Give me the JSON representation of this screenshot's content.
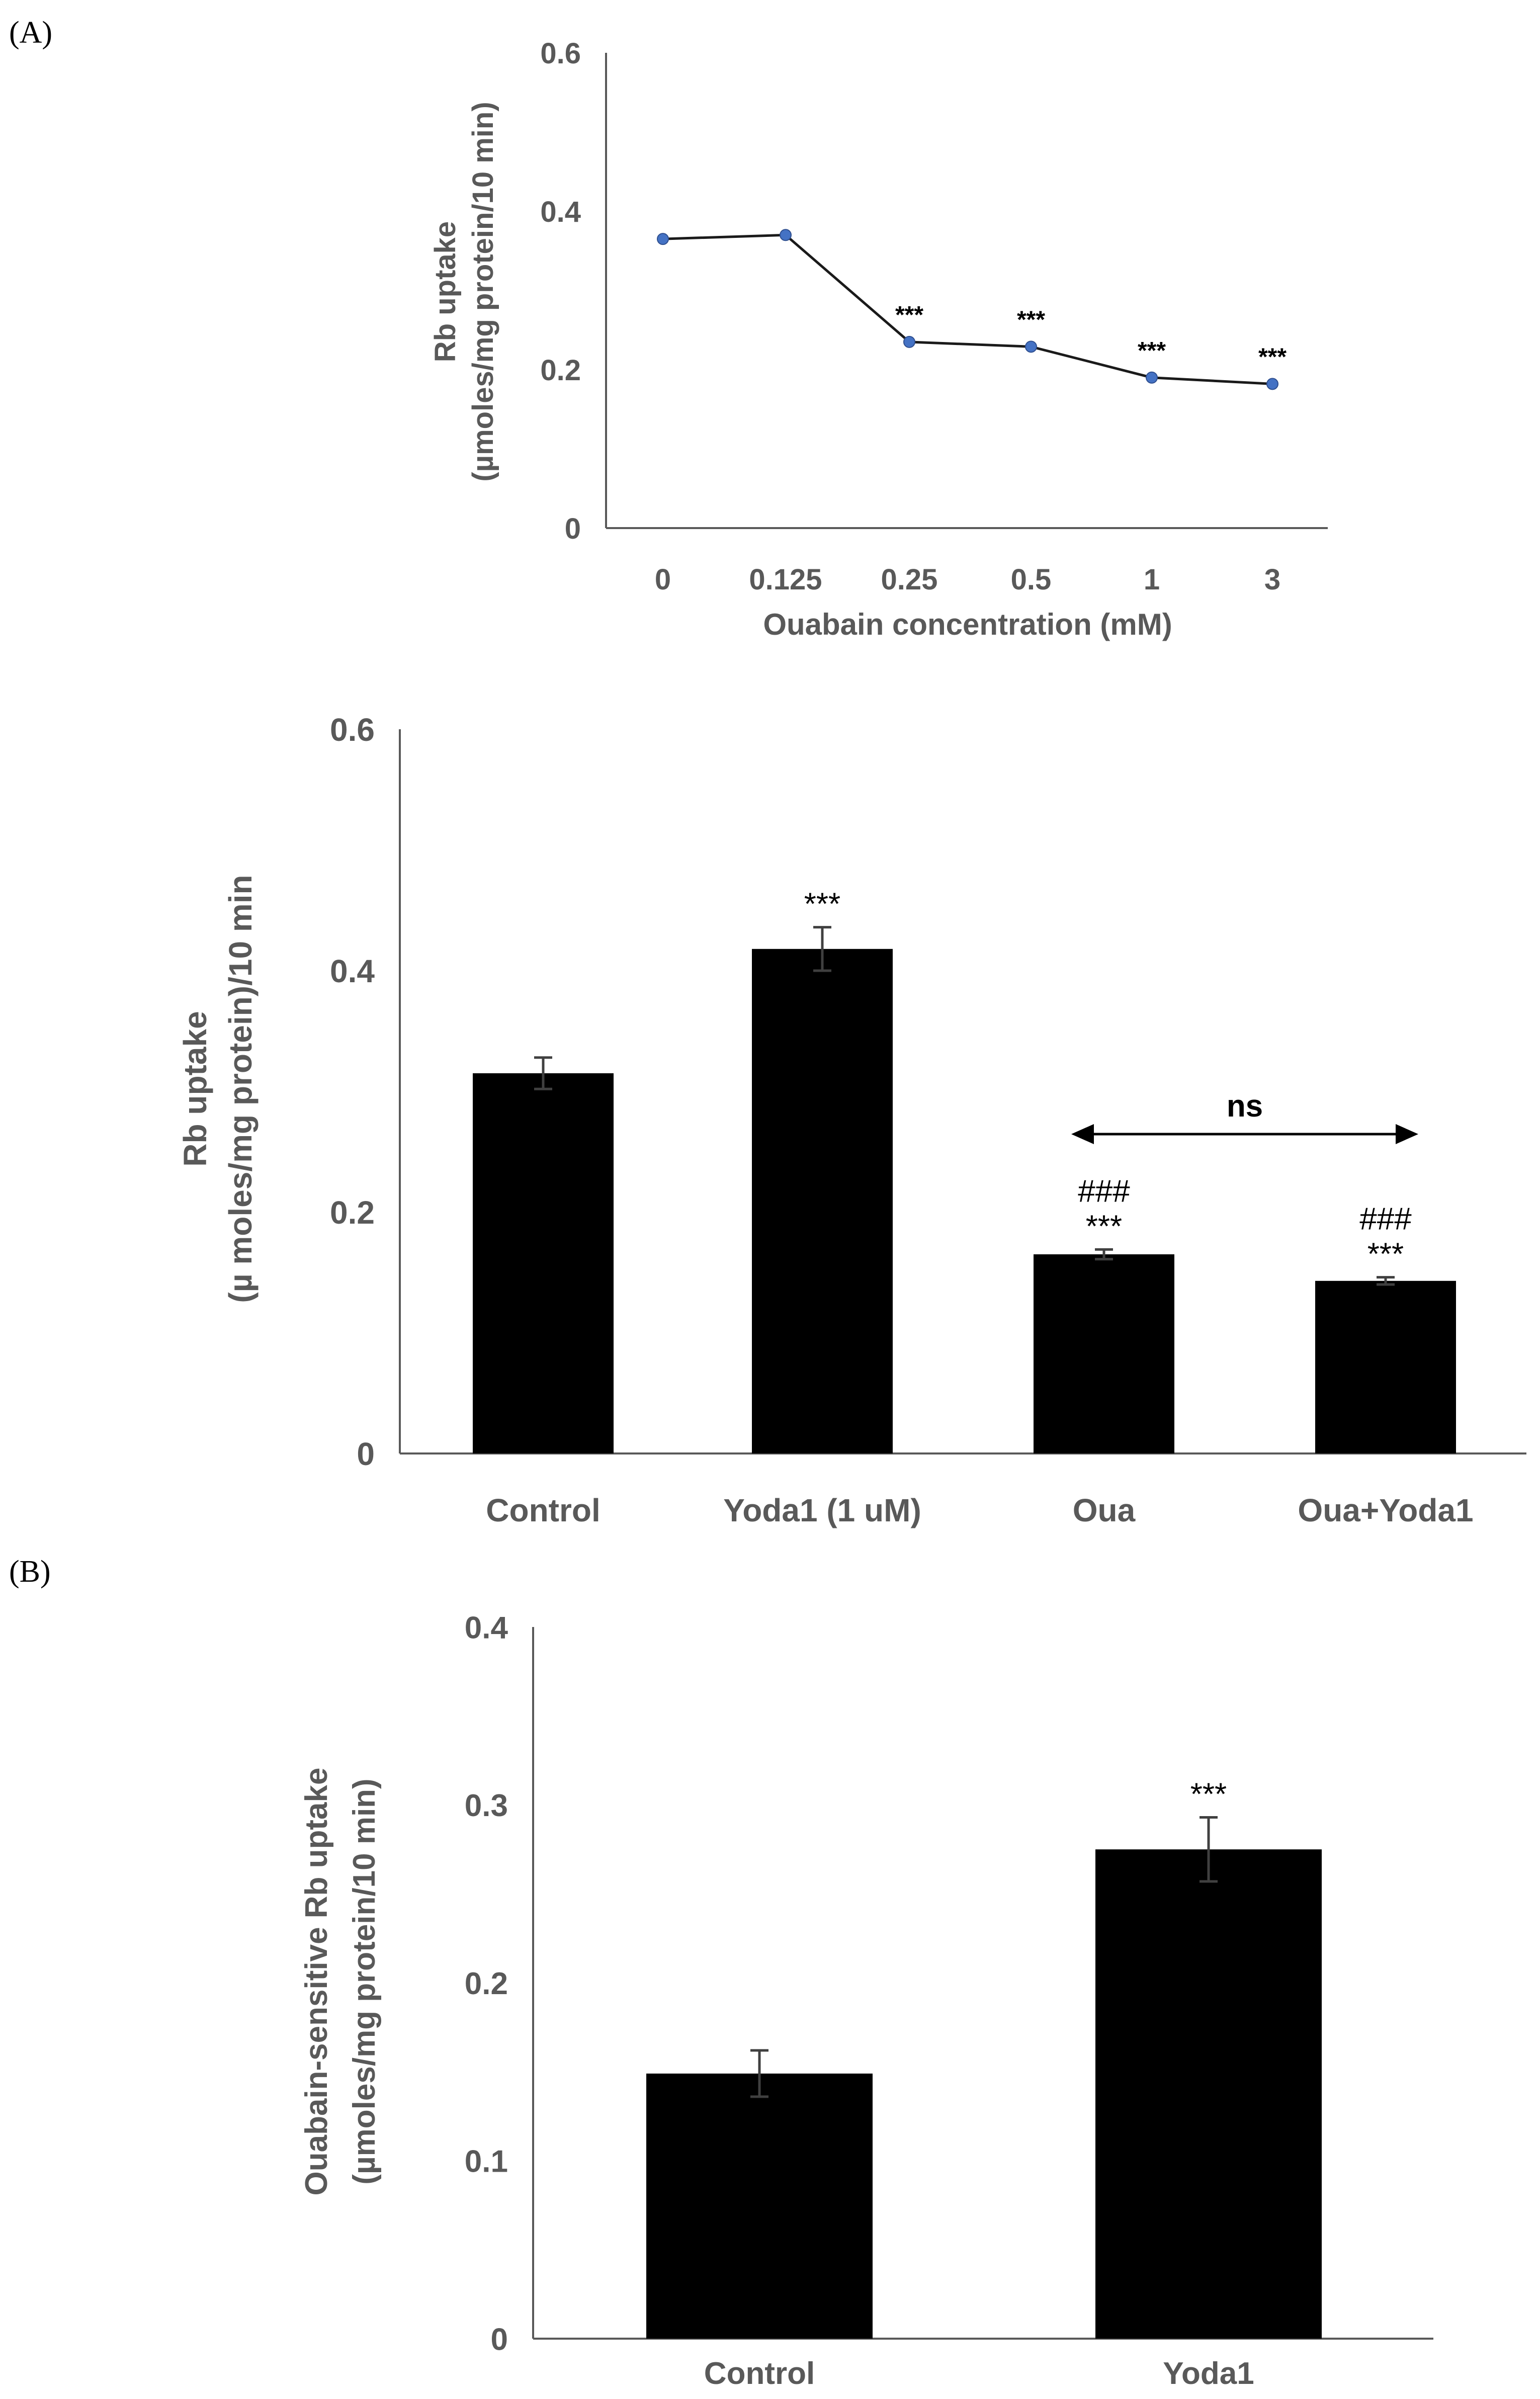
{
  "panels": {
    "a_label": "(A)",
    "b_label": "(B)"
  },
  "colors": {
    "axis": "#595959",
    "axis_text": "#595959",
    "line": "#1a1a1a",
    "marker": "#4472c4",
    "bar": "#000000",
    "errorbar": "#404040",
    "annotation": "#000000"
  },
  "chart_data": [
    {
      "id": "chart1",
      "type": "line",
      "title": "",
      "xlabel": "Ouabain concentration (mM)",
      "ylabel_lines": [
        "Rb uptake",
        "(µmoles/mg protein/10 min)"
      ],
      "ylim": [
        0,
        0.6
      ],
      "yticks": [
        0,
        0.2,
        0.4,
        0.6
      ],
      "ytick_labels": [
        "0",
        "0.2",
        "0.4",
        "0.6"
      ],
      "categories": [
        "0",
        "0.125",
        "0.25",
        "0.5",
        "1",
        "3"
      ],
      "values": [
        0.365,
        0.37,
        0.235,
        0.229,
        0.19,
        0.182
      ],
      "annotations": [
        "",
        "",
        "***",
        "***",
        "***",
        "***"
      ],
      "grid": false,
      "legend": "none"
    },
    {
      "id": "chart2",
      "type": "bar",
      "title": "",
      "xlabel": "",
      "ylabel_lines": [
        "Rb uptake",
        "(µ moles/mg protein)/10 min"
      ],
      "ylim": [
        0,
        0.6
      ],
      "yticks": [
        0,
        0.2,
        0.4,
        0.6
      ],
      "ytick_labels": [
        "0",
        "0.2",
        "0.4",
        "0.6"
      ],
      "categories": [
        "Control",
        "Yoda1 (1 uM)",
        "Oua",
        "Oua+Yoda1"
      ],
      "values": [
        0.315,
        0.418,
        0.165,
        0.143
      ],
      "errors": [
        0.013,
        0.018,
        0.004,
        0.003
      ],
      "annotations_top": [
        "",
        "",
        "###",
        "###"
      ],
      "annotations": [
        "",
        "***",
        "***",
        "***"
      ],
      "bracket_label": "ns",
      "grid": false,
      "legend": "none"
    },
    {
      "id": "chart3",
      "type": "bar",
      "title": "",
      "xlabel": "",
      "ylabel_lines": [
        "Ouabain-sensitive Rb uptake",
        "(µmoles/mg protein/10 min)"
      ],
      "ylim": [
        0,
        0.4
      ],
      "yticks": [
        0,
        0.1,
        0.2,
        0.3,
        0.4
      ],
      "ytick_labels": [
        "0",
        "0.1",
        "0.2",
        "0.3",
        "0.4"
      ],
      "categories": [
        "Control",
        "Yoda1"
      ],
      "values": [
        0.149,
        0.275
      ],
      "errors": [
        0.013,
        0.018
      ],
      "annotations": [
        "",
        "***"
      ],
      "grid": false,
      "legend": "none"
    }
  ]
}
